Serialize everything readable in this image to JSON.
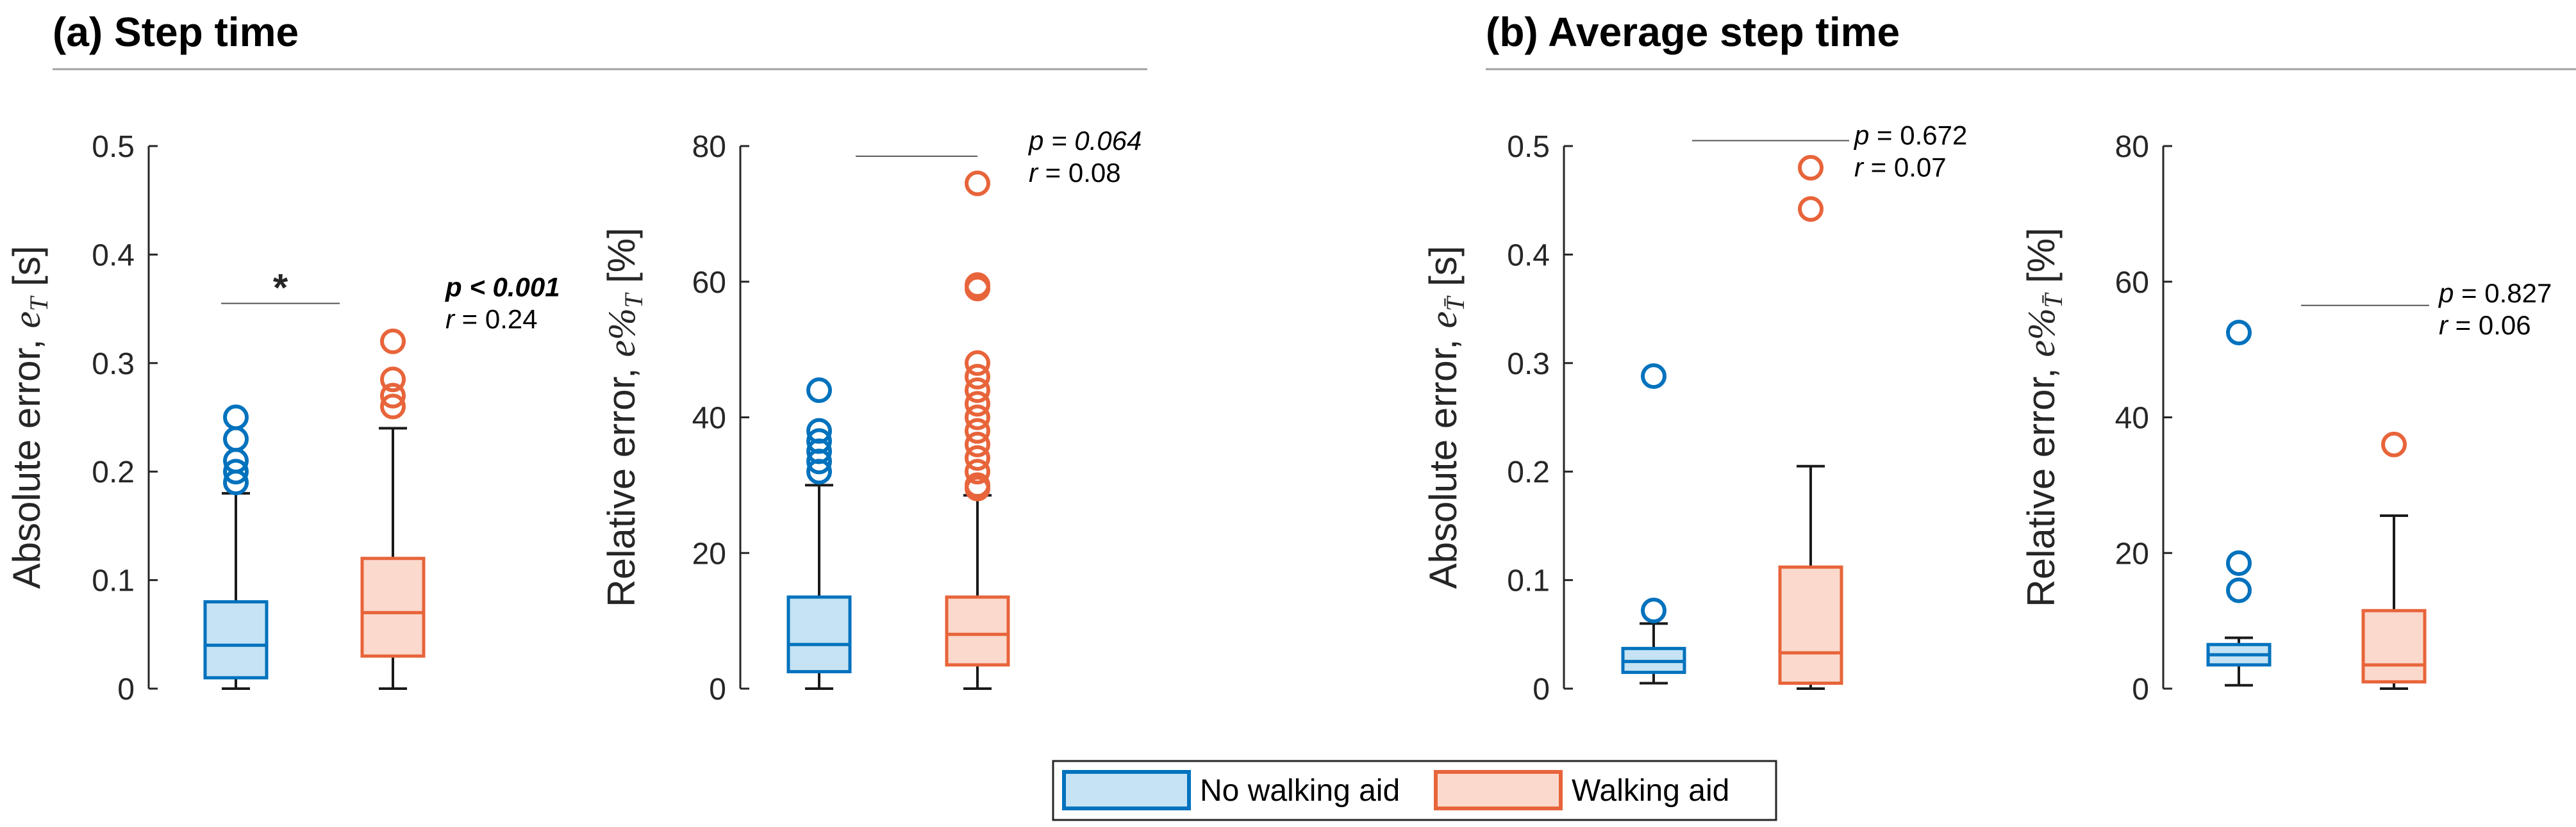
{
  "colors": {
    "no_aid_edge": "#0072BD",
    "no_aid_fill": "#C5E3F4",
    "aid_edge": "#E8643A",
    "aid_fill": "#FBD9CC",
    "whisker": "#1a1a1a",
    "axis": "#262626",
    "divider": "#a0a0a0"
  },
  "panels": {
    "a": {
      "title": "(a) Step time"
    },
    "b": {
      "title": "(b) Average step time"
    }
  },
  "legend": {
    "no_aid": "No walking aid",
    "aid": "Walking aid"
  },
  "chart_data": [
    {
      "id": "a1",
      "type": "box",
      "ylabel": {
        "main": "Absolute error, ",
        "var": "e",
        "sub": "T",
        "unit": " [s]"
      },
      "ylim": [
        0,
        0.5
      ],
      "ticks": [
        0,
        0.1,
        0.2,
        0.3,
        0.4,
        0.5
      ],
      "tick_labels": [
        "0",
        "0.1",
        "0.2",
        "0.3",
        "0.4",
        "0.5"
      ],
      "series": [
        {
          "name": "No walking aid",
          "whisker_low": 0,
          "q1": 0.01,
          "median": 0.04,
          "q3": 0.08,
          "whisker_high": 0.18,
          "outliers": [
            0.19,
            0.2,
            0.21,
            0.23,
            0.25
          ]
        },
        {
          "name": "Walking aid",
          "whisker_low": 0,
          "q1": 0.03,
          "median": 0.07,
          "q3": 0.12,
          "whisker_high": 0.24,
          "outliers": [
            0.26,
            0.27,
            0.285,
            0.32
          ]
        }
      ],
      "stats": {
        "star": "*",
        "line_y": 0.355,
        "p": {
          "label": "p",
          "text": " < 0.001",
          "italic": true,
          "bold": true
        },
        "r": {
          "label": "r",
          "text": " =  0.24"
        },
        "text_y": 0.365
      }
    },
    {
      "id": "a2",
      "type": "box",
      "ylabel": {
        "main": "Relative error, ",
        "var": "e%",
        "sub": "T",
        "unit": " [%]"
      },
      "ylim": [
        0,
        80
      ],
      "ticks": [
        0,
        20,
        40,
        60,
        80
      ],
      "tick_labels": [
        "0",
        "20",
        "40",
        "60",
        "80"
      ],
      "series": [
        {
          "name": "No walking aid",
          "whisker_low": 0,
          "q1": 2.5,
          "median": 6.5,
          "q3": 13.5,
          "whisker_high": 30,
          "outliers": [
            32,
            33.5,
            35,
            36.5,
            38,
            44
          ]
        },
        {
          "name": "Walking aid",
          "whisker_low": 0,
          "q1": 3.5,
          "median": 8,
          "q3": 13.5,
          "whisker_high": 28.5,
          "outliers": [
            29.5,
            30,
            32,
            34,
            36,
            38,
            40,
            42,
            44,
            46,
            48,
            59,
            59.5,
            74.5
          ]
        }
      ],
      "stats": {
        "star": "",
        "line_y": 78.5,
        "p": {
          "label": "p",
          "text": " = 0.064",
          "italic": true,
          "bold": false
        },
        "r": {
          "label": "r",
          "text": " =  0.08"
        },
        "text_y": 80
      }
    },
    {
      "id": "b1",
      "type": "box",
      "ylabel": {
        "main": "Absolute error, ",
        "var": "e",
        "sub": "T̄",
        "unit": " [s]"
      },
      "ylim": [
        0,
        0.5
      ],
      "ticks": [
        0,
        0.1,
        0.2,
        0.3,
        0.4,
        0.5
      ],
      "tick_labels": [
        "0",
        "0.1",
        "0.2",
        "0.3",
        "0.4",
        "0.5"
      ],
      "series": [
        {
          "name": "No walking aid",
          "whisker_low": 0.005,
          "q1": 0.015,
          "median": 0.025,
          "q3": 0.037,
          "whisker_high": 0.06,
          "outliers": [
            0.072,
            0.288
          ]
        },
        {
          "name": "Walking aid",
          "whisker_low": 0,
          "q1": 0.005,
          "median": 0.033,
          "q3": 0.112,
          "whisker_high": 0.205,
          "outliers": [
            0.442,
            0.48
          ]
        }
      ],
      "stats": {
        "star": "",
        "line_y": 0.505,
        "p": {
          "label": "p",
          "text": " = 0.672",
          "italic": false,
          "bold": false
        },
        "r": {
          "label": "r",
          "text": " =  0.07"
        },
        "text_y": 0.505
      }
    },
    {
      "id": "b2",
      "type": "box",
      "ylabel": {
        "main": "Relative error, ",
        "var": "e%",
        "sub": "T̄",
        "unit": " [%]"
      },
      "ylim": [
        0,
        80
      ],
      "ticks": [
        0,
        20,
        40,
        60,
        80
      ],
      "tick_labels": [
        "0",
        "20",
        "40",
        "60",
        "80"
      ],
      "series": [
        {
          "name": "No walking aid",
          "whisker_low": 0.5,
          "q1": 3.5,
          "median": 5,
          "q3": 6.5,
          "whisker_high": 7.5,
          "outliers": [
            14.5,
            18.5,
            52.5
          ]
        },
        {
          "name": "Walking aid",
          "whisker_low": 0,
          "q1": 1,
          "median": 3.5,
          "q3": 11.5,
          "whisker_high": 25.5,
          "outliers": [
            36
          ]
        }
      ],
      "stats": {
        "star": "",
        "line_y": 56.5,
        "p": {
          "label": "p",
          "text": " = 0.827",
          "italic": false,
          "bold": false
        },
        "r": {
          "label": "r",
          "text": " =  0.06"
        },
        "text_y": 57.5
      }
    }
  ]
}
